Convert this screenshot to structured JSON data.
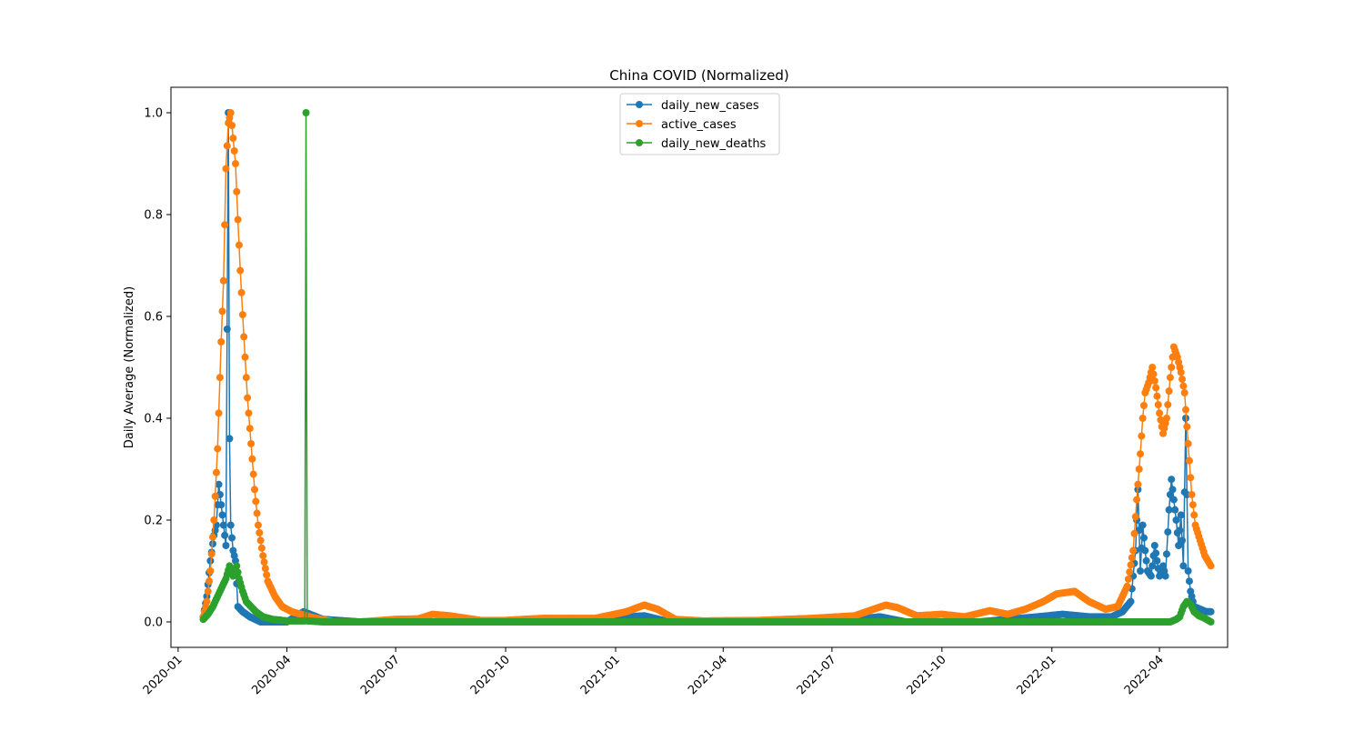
{
  "chart_data": {
    "type": "line",
    "title": "China COVID (Normalized)",
    "xlabel": "",
    "ylabel": "Daily Average (Normalized)",
    "x_axis_kind": "date",
    "xlim": [
      "2019-12-26",
      "2022-05-28"
    ],
    "ylim": [
      -0.05,
      1.05
    ],
    "x_ticks": [
      "2020-01",
      "2020-04",
      "2020-07",
      "2020-10",
      "2021-01",
      "2021-04",
      "2021-07",
      "2021-10",
      "2022-01",
      "2022-04"
    ],
    "x_tick_dates": [
      "2020-01-01",
      "2020-04-01",
      "2020-07-01",
      "2020-10-01",
      "2021-01-01",
      "2021-04-01",
      "2021-07-01",
      "2021-10-01",
      "2022-01-01",
      "2022-04-01"
    ],
    "y_ticks": [
      "0.0",
      "0.2",
      "0.4",
      "0.6",
      "0.8",
      "1.0"
    ],
    "y_tick_values": [
      0.0,
      0.2,
      0.4,
      0.6,
      0.8,
      1.0
    ],
    "grid": false,
    "legend_position": "top-center",
    "markers": "circle",
    "date_start": "2020-01-22",
    "date_end": "2022-05-14",
    "series": [
      {
        "name": "daily_new_cases",
        "color": "#1f77b4",
        "points": [
          [
            "2020-01-22",
            0.01
          ],
          [
            "2020-01-25",
            0.05
          ],
          [
            "2020-01-28",
            0.12
          ],
          [
            "2020-01-31",
            0.17
          ],
          [
            "2020-02-02",
            0.19
          ],
          [
            "2020-02-04",
            0.27
          ],
          [
            "2020-02-06",
            0.23
          ],
          [
            "2020-02-08",
            0.19
          ],
          [
            "2020-02-10",
            0.15
          ],
          [
            "2020-02-12",
            1.0
          ],
          [
            "2020-02-13",
            0.36
          ],
          [
            "2020-02-14",
            0.19
          ],
          [
            "2020-02-16",
            0.14
          ],
          [
            "2020-02-18",
            0.12
          ],
          [
            "2020-02-20",
            0.03
          ],
          [
            "2020-02-24",
            0.02
          ],
          [
            "2020-03-01",
            0.01
          ],
          [
            "2020-03-10",
            0.0
          ],
          [
            "2020-04-01",
            0.0
          ],
          [
            "2020-04-15",
            0.02
          ],
          [
            "2020-05-01",
            0.005
          ],
          [
            "2020-06-01",
            0.0
          ],
          [
            "2020-12-01",
            0.0
          ],
          [
            "2021-01-10",
            0.01
          ],
          [
            "2021-01-25",
            0.012
          ],
          [
            "2021-02-15",
            0.0
          ],
          [
            "2021-07-01",
            0.0
          ],
          [
            "2021-08-10",
            0.01
          ],
          [
            "2021-09-01",
            0.0
          ],
          [
            "2021-11-01",
            0.0
          ],
          [
            "2021-12-20",
            0.01
          ],
          [
            "2022-01-10",
            0.015
          ],
          [
            "2022-02-01",
            0.01
          ],
          [
            "2022-02-20",
            0.01
          ],
          [
            "2022-03-01",
            0.02
          ],
          [
            "2022-03-08",
            0.04
          ],
          [
            "2022-03-12",
            0.14
          ],
          [
            "2022-03-14",
            0.26
          ],
          [
            "2022-03-16",
            0.1
          ],
          [
            "2022-03-18",
            0.19
          ],
          [
            "2022-03-20",
            0.14
          ],
          [
            "2022-03-22",
            0.1
          ],
          [
            "2022-03-25",
            0.09
          ],
          [
            "2022-03-28",
            0.15
          ],
          [
            "2022-04-01",
            0.09
          ],
          [
            "2022-04-04",
            0.11
          ],
          [
            "2022-04-06",
            0.09
          ],
          [
            "2022-04-09",
            0.22
          ],
          [
            "2022-04-11",
            0.28
          ],
          [
            "2022-04-13",
            0.24
          ],
          [
            "2022-04-15",
            0.2
          ],
          [
            "2022-04-17",
            0.15
          ],
          [
            "2022-04-19",
            0.21
          ],
          [
            "2022-04-21",
            0.11
          ],
          [
            "2022-04-23",
            0.4
          ],
          [
            "2022-04-25",
            0.1
          ],
          [
            "2022-04-27",
            0.06
          ],
          [
            "2022-04-30",
            0.03
          ],
          [
            "2022-05-05",
            0.025
          ],
          [
            "2022-05-10",
            0.02
          ],
          [
            "2022-05-14",
            0.02
          ]
        ]
      },
      {
        "name": "active_cases",
        "color": "#ff7f0e",
        "points": [
          [
            "2020-01-22",
            0.01
          ],
          [
            "2020-01-25",
            0.04
          ],
          [
            "2020-01-28",
            0.1
          ],
          [
            "2020-01-31",
            0.2
          ],
          [
            "2020-02-03",
            0.34
          ],
          [
            "2020-02-06",
            0.55
          ],
          [
            "2020-02-08",
            0.67
          ],
          [
            "2020-02-10",
            0.89
          ],
          [
            "2020-02-12",
            0.98
          ],
          [
            "2020-02-14",
            1.0
          ],
          [
            "2020-02-16",
            0.95
          ],
          [
            "2020-02-18",
            0.9
          ],
          [
            "2020-02-20",
            0.79
          ],
          [
            "2020-02-22",
            0.69
          ],
          [
            "2020-02-25",
            0.56
          ],
          [
            "2020-02-28",
            0.44
          ],
          [
            "2020-03-02",
            0.35
          ],
          [
            "2020-03-05",
            0.26
          ],
          [
            "2020-03-08",
            0.19
          ],
          [
            "2020-03-12",
            0.13
          ],
          [
            "2020-03-16",
            0.08
          ],
          [
            "2020-03-22",
            0.05
          ],
          [
            "2020-03-28",
            0.03
          ],
          [
            "2020-04-05",
            0.02
          ],
          [
            "2020-04-20",
            0.01
          ],
          [
            "2020-05-10",
            0.0
          ],
          [
            "2020-06-01",
            0.0
          ],
          [
            "2020-07-01",
            0.005
          ],
          [
            "2020-07-20",
            0.006
          ],
          [
            "2020-08-01",
            0.015
          ],
          [
            "2020-08-15",
            0.012
          ],
          [
            "2020-09-10",
            0.003
          ],
          [
            "2020-10-01",
            0.003
          ],
          [
            "2020-11-01",
            0.007
          ],
          [
            "2020-12-15",
            0.007
          ],
          [
            "2021-01-10",
            0.02
          ],
          [
            "2021-01-25",
            0.033
          ],
          [
            "2021-02-05",
            0.025
          ],
          [
            "2021-02-20",
            0.005
          ],
          [
            "2021-03-15",
            0.002
          ],
          [
            "2021-05-01",
            0.003
          ],
          [
            "2021-06-15",
            0.007
          ],
          [
            "2021-07-20",
            0.012
          ],
          [
            "2021-08-05",
            0.025
          ],
          [
            "2021-08-15",
            0.033
          ],
          [
            "2021-08-25",
            0.028
          ],
          [
            "2021-09-10",
            0.012
          ],
          [
            "2021-10-01",
            0.015
          ],
          [
            "2021-10-20",
            0.01
          ],
          [
            "2021-11-10",
            0.022
          ],
          [
            "2021-11-25",
            0.015
          ],
          [
            "2021-12-10",
            0.025
          ],
          [
            "2021-12-25",
            0.04
          ],
          [
            "2022-01-05",
            0.055
          ],
          [
            "2022-01-20",
            0.06
          ],
          [
            "2022-02-01",
            0.04
          ],
          [
            "2022-02-15",
            0.025
          ],
          [
            "2022-02-25",
            0.03
          ],
          [
            "2022-03-05",
            0.07
          ],
          [
            "2022-03-10",
            0.14
          ],
          [
            "2022-03-13",
            0.24
          ],
          [
            "2022-03-16",
            0.33
          ],
          [
            "2022-03-18",
            0.4
          ],
          [
            "2022-03-20",
            0.45
          ],
          [
            "2022-03-23",
            0.47
          ],
          [
            "2022-03-26",
            0.5
          ],
          [
            "2022-03-29",
            0.46
          ],
          [
            "2022-04-01",
            0.41
          ],
          [
            "2022-04-04",
            0.37
          ],
          [
            "2022-04-07",
            0.4
          ],
          [
            "2022-04-10",
            0.48
          ],
          [
            "2022-04-13",
            0.54
          ],
          [
            "2022-04-16",
            0.52
          ],
          [
            "2022-04-19",
            0.49
          ],
          [
            "2022-04-22",
            0.45
          ],
          [
            "2022-04-25",
            0.35
          ],
          [
            "2022-04-28",
            0.25
          ],
          [
            "2022-05-01",
            0.19
          ],
          [
            "2022-05-05",
            0.16
          ],
          [
            "2022-05-09",
            0.13
          ],
          [
            "2022-05-14",
            0.11
          ]
        ]
      },
      {
        "name": "daily_new_deaths",
        "color": "#2ca02c",
        "points": [
          [
            "2020-01-22",
            0.005
          ],
          [
            "2020-01-26",
            0.015
          ],
          [
            "2020-01-30",
            0.03
          ],
          [
            "2020-02-03",
            0.05
          ],
          [
            "2020-02-07",
            0.07
          ],
          [
            "2020-02-10",
            0.085
          ],
          [
            "2020-02-13",
            0.11
          ],
          [
            "2020-02-16",
            0.09
          ],
          [
            "2020-02-19",
            0.11
          ],
          [
            "2020-02-21",
            0.085
          ],
          [
            "2020-02-24",
            0.06
          ],
          [
            "2020-02-27",
            0.04
          ],
          [
            "2020-03-02",
            0.03
          ],
          [
            "2020-03-06",
            0.02
          ],
          [
            "2020-03-12",
            0.01
          ],
          [
            "2020-03-20",
            0.005
          ],
          [
            "2020-04-01",
            0.002
          ],
          [
            "2020-04-16",
            0.002
          ],
          [
            "2020-04-17",
            1.0
          ],
          [
            "2020-04-18",
            0.002
          ],
          [
            "2020-05-01",
            0.0
          ],
          [
            "2022-03-01",
            0.0
          ],
          [
            "2022-04-10",
            0.0
          ],
          [
            "2022-04-15",
            0.005
          ],
          [
            "2022-04-18",
            0.01
          ],
          [
            "2022-04-21",
            0.03
          ],
          [
            "2022-04-24",
            0.04
          ],
          [
            "2022-04-27",
            0.035
          ],
          [
            "2022-04-30",
            0.02
          ],
          [
            "2022-05-04",
            0.012
          ],
          [
            "2022-05-09",
            0.007
          ],
          [
            "2022-05-14",
            0.0
          ]
        ]
      }
    ]
  }
}
